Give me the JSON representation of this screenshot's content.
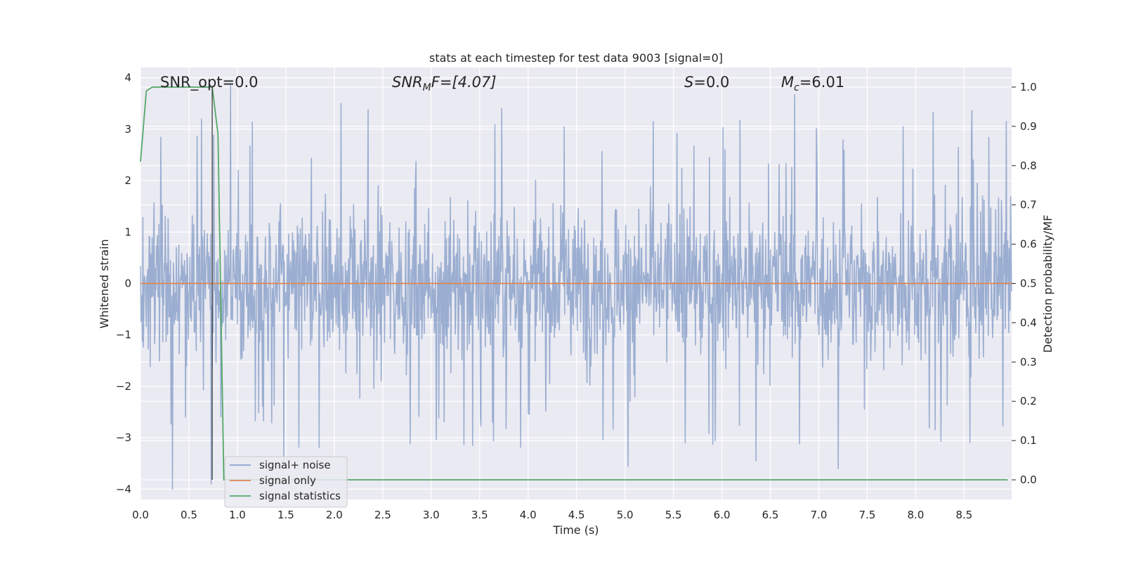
{
  "chart_data": {
    "type": "line",
    "title": "stats at each timestep for test data 9003 [signal=0]",
    "xlabel": "Time (s)",
    "ylabel": "Whitened strain",
    "y2label": "Detection probability/MF",
    "xlim": [
      0.0,
      8.99
    ],
    "ylim": [
      -4.2,
      4.2
    ],
    "y2lim": [
      -0.05,
      1.05
    ],
    "xticks": [
      0.0,
      0.5,
      1.0,
      1.5,
      2.0,
      2.5,
      3.0,
      3.5,
      4.0,
      4.5,
      5.0,
      5.5,
      6.0,
      6.5,
      7.0,
      7.5,
      8.0,
      8.5
    ],
    "xtick_labels": [
      "0.0",
      "0.5",
      "1.0",
      "1.5",
      "2.0",
      "2.5",
      "3.0",
      "3.5",
      "4.0",
      "4.5",
      "5.0",
      "5.5",
      "6.0",
      "6.5",
      "7.0",
      "7.5",
      "8.0",
      "8.5"
    ],
    "yticks": [
      -4,
      -3,
      -2,
      -1,
      0,
      1,
      2,
      3,
      4
    ],
    "ytick_labels": [
      "−4",
      "−3",
      "−2",
      "−1",
      "0",
      "1",
      "2",
      "3",
      "4"
    ],
    "y2ticks": [
      0.0,
      0.1,
      0.2,
      0.3,
      0.4,
      0.5,
      0.6,
      0.7,
      0.8,
      0.9,
      1.0
    ],
    "y2tick_labels": [
      "0.0",
      "0.1",
      "0.2",
      "0.3",
      "0.4",
      "0.5",
      "0.6",
      "0.7",
      "0.8",
      "0.9",
      "1.0"
    ],
    "grid": true,
    "legend_position": "bottom-left",
    "annotations": {
      "snr_opt": "SNR_opt=0.0",
      "snr_mf_prefix": "SNR",
      "snr_mf_sub": "M",
      "snr_mf_suffix": "F=[4.07]",
      "s_prefix": "S",
      "s_suffix": "=0.0",
      "mc_prefix": "M",
      "mc_sub": "c",
      "mc_suffix": "=6.01"
    },
    "vertical_marker_x": 0.74,
    "series": [
      {
        "name": "signal+ noise",
        "color": "#4c72b0",
        "axis": "left",
        "description_range": [
          -4.0,
          3.85
        ],
        "extremes": [
          {
            "x": 0.33,
            "y": -4.0
          },
          {
            "x": 0.73,
            "y": -3.9
          },
          {
            "x": 0.93,
            "y": 3.85
          },
          {
            "x": 2.07,
            "y": 3.5
          },
          {
            "x": 2.35,
            "y": 3.38
          },
          {
            "x": 3.73,
            "y": 3.4
          },
          {
            "x": 5.03,
            "y": -3.55
          },
          {
            "x": 6.35,
            "y": -3.45
          },
          {
            "x": 6.75,
            "y": 3.67
          },
          {
            "x": 7.2,
            "y": -3.6
          },
          {
            "x": 8.18,
            "y": 3.33
          },
          {
            "x": 8.58,
            "y": 3.36
          },
          {
            "x": 1.48,
            "y": -3.45
          },
          {
            "x": 3.43,
            "y": -3.15
          },
          {
            "x": 5.62,
            "y": -3.1
          }
        ]
      },
      {
        "name": "signal only",
        "color": "#dd8452",
        "axis": "left",
        "x": [
          0.0,
          8.99
        ],
        "y": [
          0.0,
          0.0
        ]
      },
      {
        "name": "signal statistics",
        "color": "#55a868",
        "axis": "right",
        "x": [
          0.0,
          0.06,
          0.12,
          0.25,
          0.5,
          0.74,
          0.8,
          0.86,
          1.0,
          2.0,
          4.0,
          6.0,
          8.0,
          8.95
        ],
        "y": [
          0.81,
          0.99,
          1.0,
          1.0,
          1.0,
          1.0,
          0.88,
          0.0,
          0.0,
          0.0,
          0.0,
          0.0,
          0.0,
          0.0
        ]
      }
    ]
  }
}
